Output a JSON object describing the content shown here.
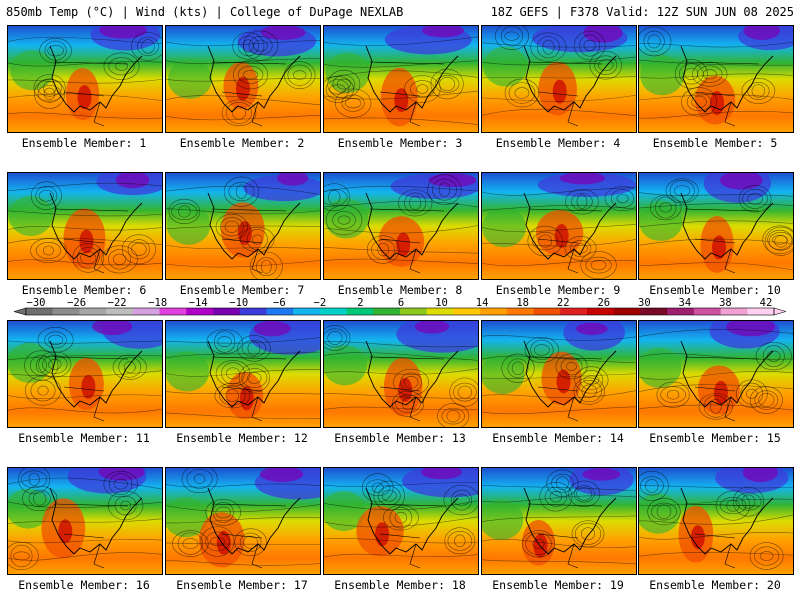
{
  "header": {
    "left": "850mb Temp (°C) | Wind (kts) | College of DuPage NEXLAB",
    "right": "18Z GEFS | F378 Valid: 12Z SUN JUN 08 2025"
  },
  "panels": [
    {
      "label": "Ensemble Member: 1"
    },
    {
      "label": "Ensemble Member: 2"
    },
    {
      "label": "Ensemble Member: 3"
    },
    {
      "label": "Ensemble Member: 4"
    },
    {
      "label": "Ensemble Member: 5"
    },
    {
      "label": "Ensemble Member: 6"
    },
    {
      "label": "Ensemble Member: 7"
    },
    {
      "label": "Ensemble Member: 8"
    },
    {
      "label": "Ensemble Member: 9"
    },
    {
      "label": "Ensemble Member: 10"
    },
    {
      "label": "Ensemble Member: 11"
    },
    {
      "label": "Ensemble Member: 12"
    },
    {
      "label": "Ensemble Member: 13"
    },
    {
      "label": "Ensemble Member: 14"
    },
    {
      "label": "Ensemble Member: 15"
    },
    {
      "label": "Ensemble Member: 16"
    },
    {
      "label": "Ensemble Member: 17"
    },
    {
      "label": "Ensemble Member: 18"
    },
    {
      "label": "Ensemble Member: 19"
    },
    {
      "label": "Ensemble Member: 20"
    }
  ],
  "colorbar": {
    "tick_labels": [
      "−30",
      "−26",
      "−22",
      "−18",
      "−14",
      "−10",
      "−6",
      "−2",
      "2",
      "6",
      "10",
      "14",
      "18",
      "22",
      "26",
      "30",
      "34",
      "38",
      "42"
    ],
    "colors": [
      "#707070",
      "#8c8c8c",
      "#a6a6a6",
      "#bdbdbd",
      "#d4a0e0",
      "#e040e0",
      "#b000c8",
      "#7a00b4",
      "#3c3cdc",
      "#1e78f0",
      "#14b4f0",
      "#00d2c8",
      "#00c878",
      "#32b432",
      "#8cc81e",
      "#dcdc00",
      "#ffc800",
      "#ffa000",
      "#ff7800",
      "#f05000",
      "#e02020",
      "#c80000",
      "#a00000",
      "#780a28",
      "#a01e6e",
      "#d050a0",
      "#f0a0d2",
      "#ffd0f0"
    ]
  }
}
